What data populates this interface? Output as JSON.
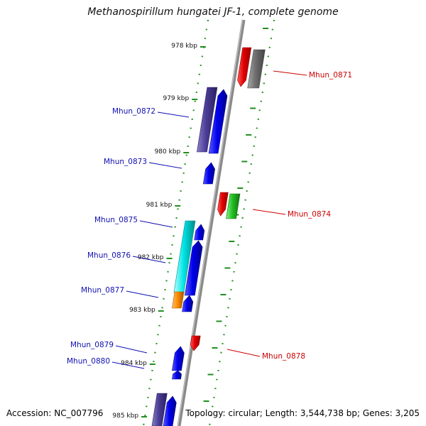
{
  "title": "Methanospirillum hungatei JF-1, complete genome",
  "footer": {
    "accession": "Accession: NC_007796",
    "topology": "Topology: circular; Length: 3,544,738 bp; Genes: 3,205"
  },
  "ticks": [
    {
      "label": "978 kbp",
      "kbp": 978
    },
    {
      "label": "979 kbp",
      "kbp": 979
    },
    {
      "label": "980 kbp",
      "kbp": 980
    },
    {
      "label": "981 kbp",
      "kbp": 981
    },
    {
      "label": "982 kbp",
      "kbp": 982
    },
    {
      "label": "983 kbp",
      "kbp": 983
    },
    {
      "label": "984 kbp",
      "kbp": 984
    },
    {
      "label": "985 kbp",
      "kbp": 985
    }
  ],
  "colors": {
    "backbone": "#8a8a8a",
    "forward_label": "#1010b0",
    "reverse_label": "#cc0000",
    "dotted_track": "#1f8f1f"
  },
  "labels": [
    {
      "text": "Mhun_0871",
      "strand": "reverse",
      "color": "#cc0000"
    },
    {
      "text": "Mhun_0872",
      "strand": "forward",
      "color": "#1010b0"
    },
    {
      "text": "Mhun_0873",
      "strand": "forward",
      "color": "#1010b0"
    },
    {
      "text": "Mhun_0874",
      "strand": "reverse",
      "color": "#cc0000"
    },
    {
      "text": "Mhun_0875",
      "strand": "forward",
      "color": "#1010b0"
    },
    {
      "text": "Mhun_0876",
      "strand": "forward",
      "color": "#1010b0"
    },
    {
      "text": "Mhun_0877",
      "strand": "forward",
      "color": "#1010b0"
    },
    {
      "text": "Mhun_0878",
      "strand": "reverse",
      "color": "#cc0000"
    },
    {
      "text": "Mhun_0879",
      "strand": "forward",
      "color": "#1010b0"
    },
    {
      "text": "Mhun_0880",
      "strand": "forward",
      "color": "#1010b0"
    }
  ]
}
